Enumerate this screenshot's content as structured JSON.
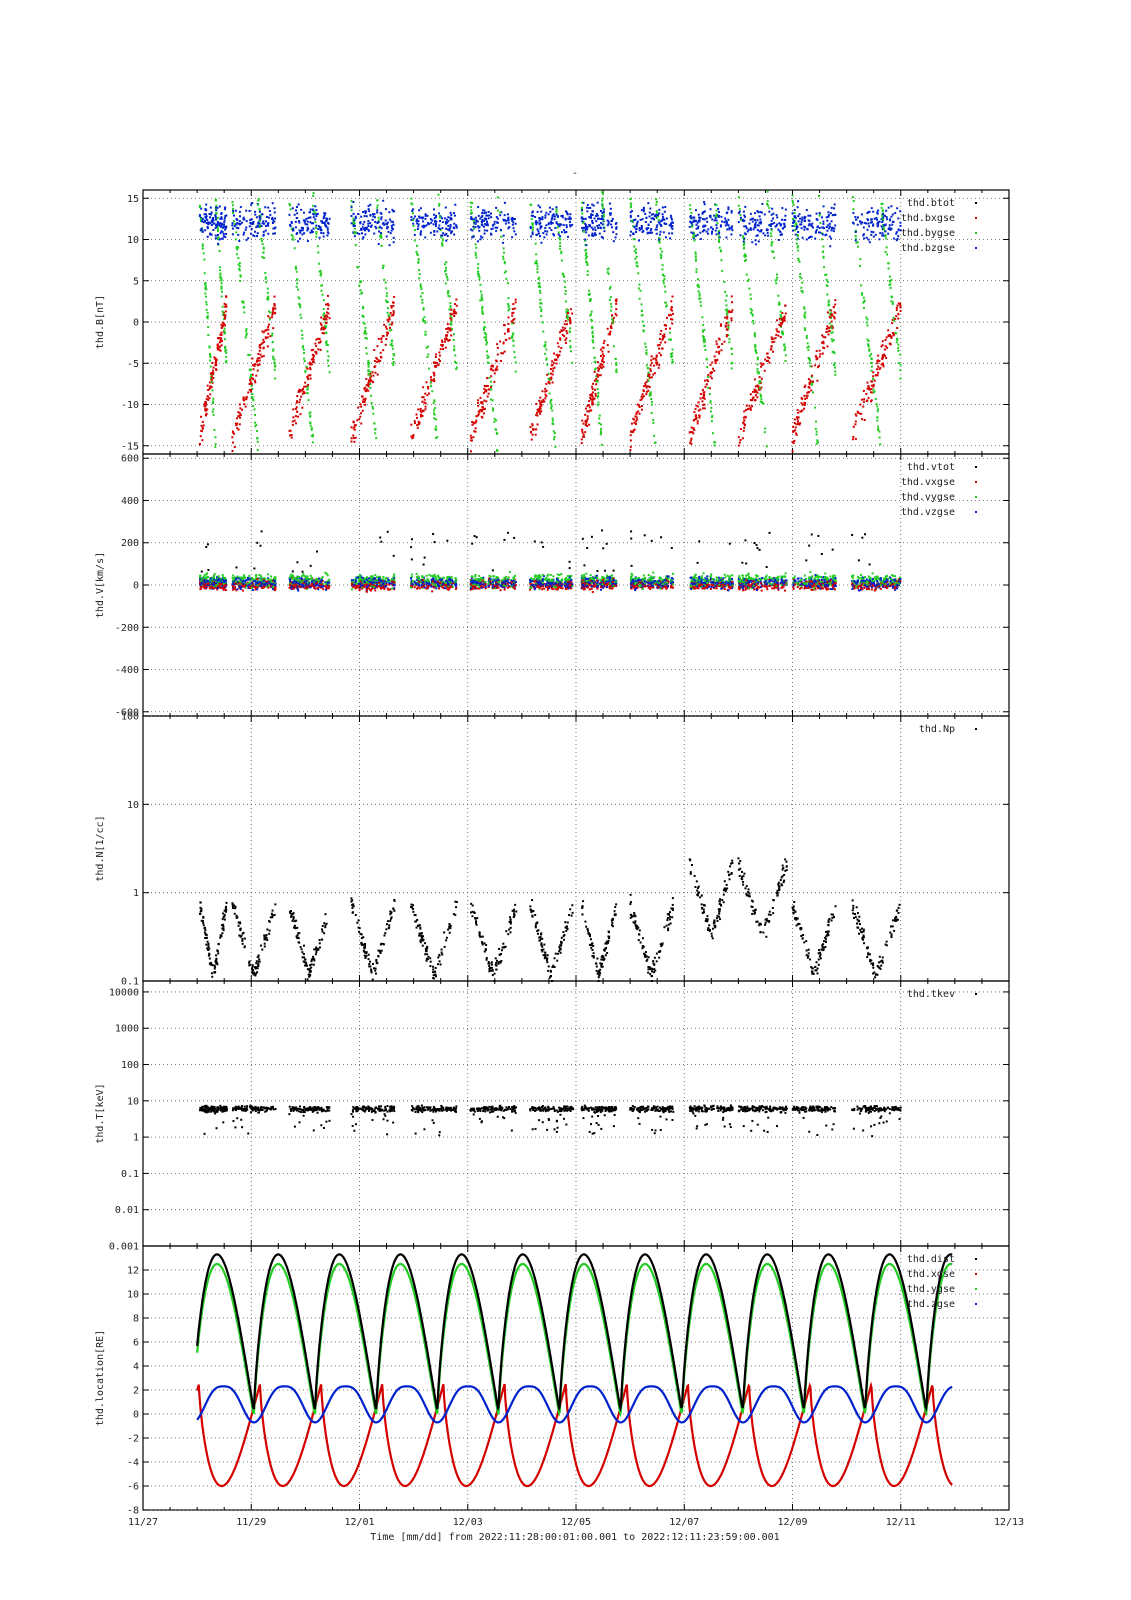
{
  "figure": {
    "title": "-",
    "xlabel": "Time [mm/dd]  from 2022:11:28:00:01:00.001  to  2022:12:11:23:59:00.001",
    "x_ticks": [
      "11/27",
      "11/29",
      "12/01",
      "12/03",
      "12/05",
      "12/07",
      "12/09",
      "12/11",
      "12/13"
    ]
  },
  "chart_data": [
    {
      "type": "scatter",
      "ylabel": "thd.B[nT]",
      "ylim": [
        -16,
        16
      ],
      "yscale": "linear",
      "yticks": [
        "15",
        "10",
        "5",
        "0",
        "-5",
        "-10",
        "-15"
      ],
      "grid": true,
      "legend_position": "top-right",
      "series": [
        {
          "name": "thd.btot",
          "color": "#000000"
        },
        {
          "name": "thd.bxgse",
          "color": "#d40000"
        },
        {
          "name": "thd.bygse",
          "color": "#22cc22"
        },
        {
          "name": "thd.bzgse",
          "color": "#0022cc"
        }
      ]
    },
    {
      "type": "scatter",
      "ylabel": "thd.V[km/s]",
      "ylim": [
        -620,
        620
      ],
      "yscale": "linear",
      "yticks": [
        "600",
        "400",
        "200",
        "0",
        "-200",
        "-400",
        "-600"
      ],
      "grid": true,
      "legend_position": "top-right",
      "series": [
        {
          "name": "thd.vtot",
          "color": "#000000"
        },
        {
          "name": "thd.vxgse",
          "color": "#d40000"
        },
        {
          "name": "thd.vygse",
          "color": "#22cc22"
        },
        {
          "name": "thd.vzgse",
          "color": "#0022cc"
        }
      ]
    },
    {
      "type": "scatter",
      "ylabel": "thd.N[1/cc]",
      "ylim": [
        0.1,
        100
      ],
      "yscale": "log",
      "yticks": [
        "100",
        "10",
        "1",
        "0.1"
      ],
      "grid": true,
      "legend_position": "top-right",
      "series": [
        {
          "name": "thd.Np",
          "color": "#000000"
        }
      ]
    },
    {
      "type": "scatter",
      "ylabel": "thd.T[keV]",
      "ylim": [
        0.001,
        20000
      ],
      "yscale": "log",
      "yticks": [
        "10000",
        "1000",
        "100",
        "10",
        "1",
        "0.1",
        "0.01",
        "0.001"
      ],
      "grid": true,
      "legend_position": "top-right",
      "series": [
        {
          "name": "thd.tkev",
          "color": "#000000"
        }
      ]
    },
    {
      "type": "line",
      "ylabel": "thd.location[RE]",
      "ylim": [
        -8,
        14
      ],
      "yscale": "linear",
      "yticks": [
        "12",
        "10",
        "8",
        "6",
        "4",
        "2",
        "0",
        "-2",
        "-4",
        "-6",
        "-8"
      ],
      "grid": true,
      "legend_position": "top-right",
      "series": [
        {
          "name": "thd.dist",
          "color": "#000000"
        },
        {
          "name": "thd.xgse",
          "color": "#d40000"
        },
        {
          "name": "thd.ygse",
          "color": "#22cc22"
        },
        {
          "name": "thd.zgse",
          "color": "#0022cc"
        }
      ]
    }
  ]
}
